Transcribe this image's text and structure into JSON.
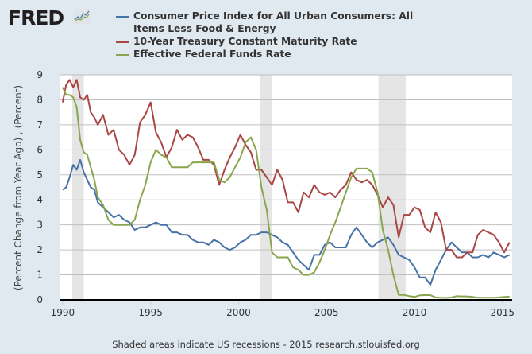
{
  "header": {
    "logo_text": "FRED",
    "logo_icon": "chart-line-icon"
  },
  "footer": {
    "note": "Shaded areas indicate US recessions - 2015 research.stlouisfed.org"
  },
  "chart_data": {
    "type": "line",
    "title": "",
    "xlabel": "",
    "ylabel": "(Percent Change from Year Ago) , (Percent)",
    "xlim": [
      1989.87,
      2015.55
    ],
    "ylim": [
      0,
      9
    ],
    "grid": true,
    "legend_placement": "top",
    "x_ticks": [
      1990,
      1995,
      2000,
      2005,
      2010,
      2015
    ],
    "x_tick_labels": [
      "1990",
      "1995",
      "2000",
      "2005",
      "2010",
      "2015"
    ],
    "y_ticks": [
      0,
      1,
      2,
      3,
      4,
      5,
      6,
      7,
      8,
      9
    ],
    "y_tick_labels": [
      "0",
      "1",
      "2",
      "3",
      "4",
      "5",
      "6",
      "7",
      "8",
      "9"
    ],
    "recessions": [
      [
        1990.55,
        1991.2
      ],
      [
        2001.2,
        2001.9
      ],
      [
        2007.95,
        2009.5
      ]
    ],
    "series": [
      {
        "name": "Consumer Price Index for All Urban Consumers: All Items Less Food & Energy",
        "color": "#4572a7",
        "x": [
          1990.0,
          1990.2,
          1990.4,
          1990.6,
          1990.8,
          1991.0,
          1991.2,
          1991.4,
          1991.6,
          1991.8,
          1992.0,
          1992.3,
          1992.6,
          1992.9,
          1993.2,
          1993.5,
          1993.8,
          1994.1,
          1994.4,
          1994.7,
          1995.0,
          1995.3,
          1995.6,
          1995.9,
          1996.2,
          1996.5,
          1996.8,
          1997.1,
          1997.4,
          1997.7,
          1998.0,
          1998.3,
          1998.6,
          1998.9,
          1999.2,
          1999.5,
          1999.8,
          2000.1,
          2000.4,
          2000.7,
          2001.0,
          2001.3,
          2001.6,
          2001.9,
          2002.2,
          2002.5,
          2002.8,
          2003.1,
          2003.4,
          2003.7,
          2004.0,
          2004.3,
          2004.6,
          2004.9,
          2005.2,
          2005.5,
          2005.8,
          2006.1,
          2006.4,
          2006.7,
          2007.0,
          2007.3,
          2007.6,
          2007.9,
          2008.2,
          2008.5,
          2008.8,
          2009.1,
          2009.4,
          2009.7,
          2010.0,
          2010.3,
          2010.6,
          2010.9,
          2011.2,
          2011.5,
          2011.8,
          2012.1,
          2012.4,
          2012.7,
          2013.0,
          2013.3,
          2013.6,
          2013.9,
          2014.2,
          2014.5,
          2014.8,
          2015.1,
          2015.4
        ],
        "values": [
          4.4,
          4.5,
          4.9,
          5.4,
          5.2,
          5.6,
          5.1,
          4.8,
          4.5,
          4.4,
          3.9,
          3.7,
          3.5,
          3.3,
          3.4,
          3.2,
          3.1,
          2.8,
          2.9,
          2.9,
          3.0,
          3.1,
          3.0,
          3.0,
          2.7,
          2.7,
          2.6,
          2.6,
          2.4,
          2.3,
          2.3,
          2.2,
          2.4,
          2.3,
          2.1,
          2.0,
          2.1,
          2.3,
          2.4,
          2.6,
          2.6,
          2.7,
          2.7,
          2.6,
          2.5,
          2.3,
          2.2,
          1.9,
          1.6,
          1.4,
          1.2,
          1.8,
          1.8,
          2.2,
          2.3,
          2.1,
          2.1,
          2.1,
          2.6,
          2.9,
          2.6,
          2.3,
          2.1,
          2.3,
          2.4,
          2.5,
          2.2,
          1.8,
          1.7,
          1.6,
          1.3,
          0.9,
          0.9,
          0.6,
          1.2,
          1.6,
          2.0,
          2.3,
          2.1,
          1.9,
          1.9,
          1.7,
          1.7,
          1.8,
          1.7,
          1.9,
          1.8,
          1.7,
          1.8
        ]
      },
      {
        "name": "10-Year Treasury Constant Maturity Rate",
        "color": "#aa4643",
        "x": [
          1990.0,
          1990.2,
          1990.4,
          1990.6,
          1990.8,
          1991.0,
          1991.2,
          1991.4,
          1991.6,
          1991.8,
          1992.0,
          1992.3,
          1992.6,
          1992.9,
          1993.2,
          1993.5,
          1993.8,
          1994.1,
          1994.4,
          1994.7,
          1995.0,
          1995.3,
          1995.6,
          1995.9,
          1996.2,
          1996.5,
          1996.8,
          1997.1,
          1997.4,
          1997.7,
          1998.0,
          1998.3,
          1998.6,
          1998.9,
          1999.2,
          1999.5,
          1999.8,
          2000.1,
          2000.4,
          2000.7,
          2001.0,
          2001.3,
          2001.6,
          2001.9,
          2002.2,
          2002.5,
          2002.8,
          2003.1,
          2003.4,
          2003.7,
          2004.0,
          2004.3,
          2004.6,
          2004.9,
          2005.2,
          2005.5,
          2005.8,
          2006.1,
          2006.4,
          2006.7,
          2007.0,
          2007.3,
          2007.6,
          2007.9,
          2008.2,
          2008.5,
          2008.8,
          2009.1,
          2009.4,
          2009.7,
          2010.0,
          2010.3,
          2010.6,
          2010.9,
          2011.2,
          2011.5,
          2011.8,
          2012.1,
          2012.4,
          2012.7,
          2013.0,
          2013.3,
          2013.6,
          2013.9,
          2014.2,
          2014.5,
          2014.8,
          2015.1,
          2015.4
        ],
        "values": [
          7.9,
          8.6,
          8.8,
          8.5,
          8.8,
          8.1,
          8.0,
          8.2,
          7.5,
          7.3,
          7.0,
          7.4,
          6.6,
          6.8,
          6.0,
          5.8,
          5.4,
          5.8,
          7.1,
          7.4,
          7.9,
          6.7,
          6.3,
          5.7,
          6.1,
          6.8,
          6.4,
          6.6,
          6.5,
          6.1,
          5.6,
          5.6,
          5.4,
          4.6,
          5.2,
          5.7,
          6.1,
          6.6,
          6.2,
          5.9,
          5.2,
          5.2,
          4.9,
          4.6,
          5.2,
          4.8,
          3.9,
          3.9,
          3.5,
          4.3,
          4.1,
          4.6,
          4.3,
          4.2,
          4.3,
          4.1,
          4.4,
          4.6,
          5.1,
          4.8,
          4.7,
          4.8,
          4.6,
          4.2,
          3.7,
          4.1,
          3.8,
          2.5,
          3.4,
          3.4,
          3.7,
          3.6,
          2.9,
          2.7,
          3.5,
          3.1,
          2.0,
          2.0,
          1.7,
          1.7,
          1.9,
          1.9,
          2.6,
          2.8,
          2.7,
          2.6,
          2.3,
          1.9,
          2.3
        ]
      },
      {
        "name": "Effective Federal Funds Rate",
        "color": "#89a54e",
        "x": [
          1990.0,
          1990.2,
          1990.4,
          1990.6,
          1990.8,
          1991.0,
          1991.2,
          1991.4,
          1991.6,
          1991.8,
          1992.0,
          1992.3,
          1992.6,
          1992.9,
          1993.2,
          1993.5,
          1993.8,
          1994.1,
          1994.4,
          1994.7,
          1995.0,
          1995.3,
          1995.6,
          1995.9,
          1996.2,
          1996.5,
          1996.8,
          1997.1,
          1997.4,
          1997.7,
          1998.0,
          1998.3,
          1998.6,
          1998.9,
          1999.2,
          1999.5,
          1999.8,
          2000.1,
          2000.4,
          2000.7,
          2001.0,
          2001.3,
          2001.6,
          2001.9,
          2002.2,
          2002.5,
          2002.8,
          2003.1,
          2003.4,
          2003.7,
          2004.0,
          2004.3,
          2004.6,
          2004.9,
          2005.2,
          2005.5,
          2005.8,
          2006.1,
          2006.4,
          2006.7,
          2007.0,
          2007.3,
          2007.6,
          2007.9,
          2008.2,
          2008.5,
          2008.8,
          2009.1,
          2009.4,
          2009.7,
          2010.0,
          2010.3,
          2010.6,
          2010.9,
          2011.2,
          2011.5,
          2011.8,
          2012.1,
          2012.4,
          2012.7,
          2013.0,
          2013.3,
          2013.6,
          2013.9,
          2014.2,
          2014.5,
          2014.8,
          2015.1,
          2015.4
        ],
        "values": [
          8.5,
          8.2,
          8.2,
          8.1,
          7.7,
          6.4,
          5.9,
          5.8,
          5.3,
          4.8,
          4.1,
          3.8,
          3.2,
          3.0,
          3.0,
          3.0,
          3.0,
          3.2,
          4.0,
          4.6,
          5.5,
          6.0,
          5.8,
          5.7,
          5.3,
          5.3,
          5.3,
          5.3,
          5.5,
          5.5,
          5.5,
          5.5,
          5.5,
          4.8,
          4.7,
          4.9,
          5.3,
          5.7,
          6.3,
          6.5,
          6.0,
          4.5,
          3.6,
          1.9,
          1.7,
          1.7,
          1.7,
          1.3,
          1.2,
          1.0,
          1.0,
          1.1,
          1.5,
          2.0,
          2.6,
          3.1,
          3.7,
          4.3,
          4.9,
          5.25,
          5.25,
          5.25,
          5.1,
          4.3,
          2.8,
          2.0,
          1.0,
          0.2,
          0.2,
          0.15,
          0.12,
          0.18,
          0.19,
          0.19,
          0.1,
          0.09,
          0.08,
          0.1,
          0.15,
          0.14,
          0.14,
          0.12,
          0.09,
          0.09,
          0.09,
          0.09,
          0.1,
          0.12,
          0.13
        ]
      }
    ]
  }
}
